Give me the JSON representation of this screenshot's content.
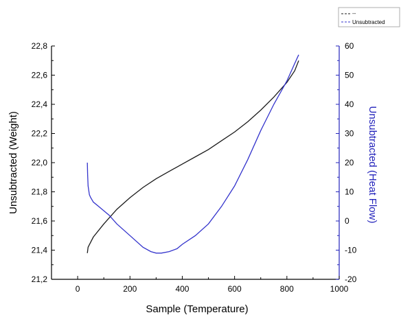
{
  "chart_data": {
    "type": "line",
    "xlabel": "Sample (Temperature)",
    "ylabel_left": "Unsubtracted (Weight)",
    "ylabel_right": "Unsubtracted (Heat Flow)",
    "xlim": [
      -100,
      1000
    ],
    "ylim_left": [
      21.2,
      22.8
    ],
    "ylim_right": [
      -20,
      60
    ],
    "x_ticks": [
      0,
      200,
      400,
      600,
      800,
      1000
    ],
    "y_left_ticks": [
      21.2,
      21.4,
      21.6,
      21.8,
      22.0,
      22.2,
      22.4,
      22.6,
      22.8
    ],
    "y_left_tick_labels": [
      "21,2",
      "21,4",
      "21,6",
      "21,8",
      "22,0",
      "22,2",
      "22,4",
      "22,6",
      "22,8"
    ],
    "y_right_ticks": [
      -20,
      -10,
      0,
      10,
      20,
      30,
      40,
      50,
      60
    ],
    "legend_position": "top-right",
    "series": [
      {
        "name": "--",
        "axis": "left",
        "color": "#1a1a1a",
        "x": [
          37,
          40,
          60,
          100,
          150,
          200,
          250,
          300,
          350,
          400,
          450,
          500,
          550,
          600,
          650,
          700,
          750,
          800,
          830,
          845
        ],
        "y": [
          21.38,
          21.42,
          21.49,
          21.58,
          21.68,
          21.76,
          21.83,
          21.89,
          21.94,
          21.99,
          22.04,
          22.09,
          22.15,
          22.21,
          22.28,
          22.36,
          22.45,
          22.55,
          22.63,
          22.7
        ]
      },
      {
        "name": "Unsubtracted",
        "axis": "right",
        "color": "#3333cc",
        "x": [
          37,
          38,
          40,
          45,
          50,
          60,
          80,
          100,
          120,
          150,
          200,
          250,
          280,
          300,
          320,
          350,
          380,
          400,
          450,
          500,
          550,
          600,
          650,
          700,
          750,
          800,
          830,
          845
        ],
        "y": [
          20,
          16,
          12,
          9,
          8,
          6.5,
          5,
          3.5,
          2,
          -1,
          -5,
          -9,
          -10.5,
          -11,
          -11,
          -10.5,
          -9.5,
          -8,
          -5,
          -1,
          5,
          12,
          21,
          31,
          40,
          48,
          54,
          57
        ]
      }
    ]
  }
}
